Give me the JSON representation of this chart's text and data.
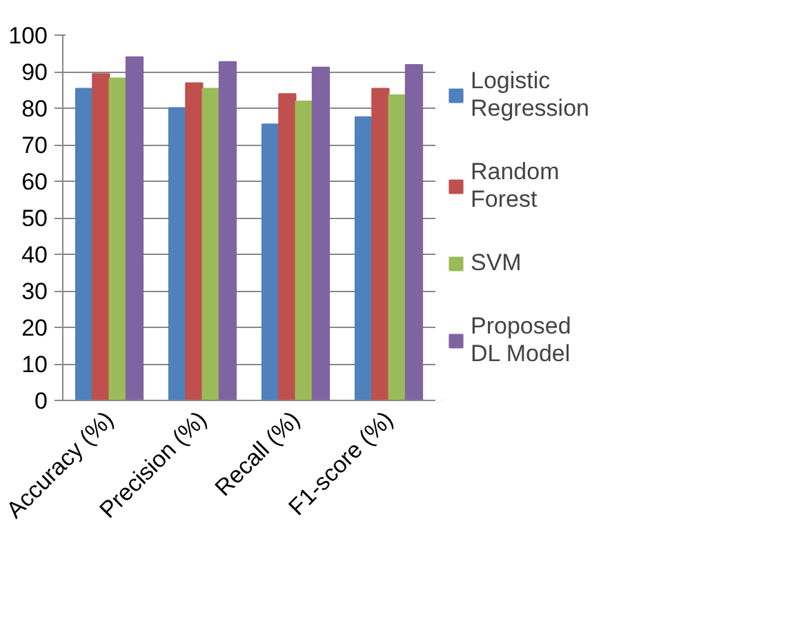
{
  "chart_data": {
    "type": "bar",
    "categories": [
      "Accuracy (%)",
      "Precision (%)",
      "Recall (%)",
      "F1-score (%)"
    ],
    "series": [
      {
        "name": "Logistic Regression",
        "color": "#4f81bd",
        "values": [
          85.4,
          80.1,
          75.6,
          77.6
        ]
      },
      {
        "name": "Random Forest",
        "color": "#c0504d",
        "values": [
          89.4,
          86.9,
          83.9,
          85.4
        ]
      },
      {
        "name": "SVM",
        "color": "#9bbb59",
        "values": [
          88.2,
          85.4,
          81.9,
          83.6
        ]
      },
      {
        "name": "Proposed DL Model",
        "color": "#8064a2",
        "values": [
          94.0,
          92.7,
          91.2,
          91.9
        ]
      }
    ],
    "ylim": [
      0,
      100
    ],
    "yticks": [
      0,
      10,
      20,
      30,
      40,
      50,
      60,
      70,
      80,
      90,
      100
    ],
    "grid": "y",
    "legend": "right"
  }
}
